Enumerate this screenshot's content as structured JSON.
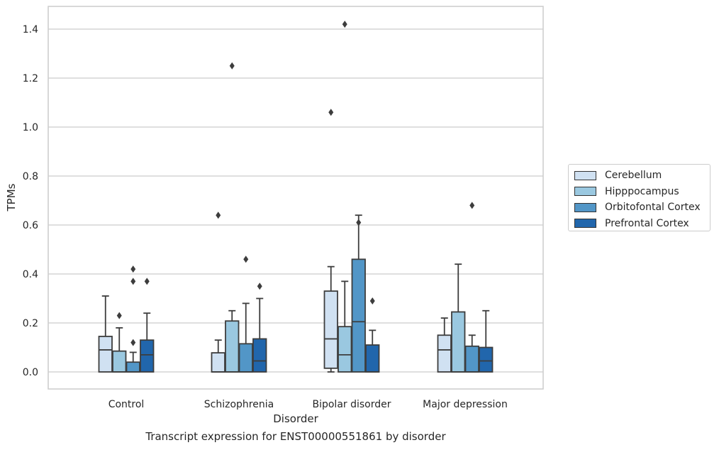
{
  "chart_data": {
    "type": "box",
    "title": "",
    "caption": "Transcript expression for ENST00000551861 by disorder",
    "xlabel": "Disorder",
    "ylabel": "TPMs",
    "ylim": [
      -0.07,
      1.49
    ],
    "yticks": [
      "0.0",
      "0.2",
      "0.4",
      "0.6",
      "0.8",
      "1.0",
      "1.2",
      "1.4"
    ],
    "ytick_values": [
      0,
      0.2,
      0.4,
      0.6,
      0.8,
      1.0,
      1.2,
      1.4
    ],
    "grid": "horizontal",
    "legend_position": "right",
    "categories": [
      "Control",
      "Schizophrenia",
      "Bipolar disorder",
      "Major depression"
    ],
    "series": [
      {
        "name": "Cerebellum",
        "color": "#d0e1f2",
        "boxes": [
          {
            "q1": 0,
            "median": 0.09,
            "q3": 0.145,
            "whisker_low": 0,
            "whisker_high": 0.31,
            "outliers": []
          },
          {
            "q1": 0,
            "median": 0.0,
            "q3": 0.078,
            "whisker_low": 0,
            "whisker_high": 0.13,
            "outliers": [
              0.64
            ]
          },
          {
            "q1": 0.015,
            "median": 0.135,
            "q3": 0.33,
            "whisker_low": 0,
            "whisker_high": 0.43,
            "outliers": [
              1.06
            ]
          },
          {
            "q1": 0,
            "median": 0.09,
            "q3": 0.15,
            "whisker_low": 0,
            "whisker_high": 0.22,
            "outliers": []
          }
        ]
      },
      {
        "name": "Hipppocampus",
        "color": "#9ac8e0",
        "boxes": [
          {
            "q1": 0,
            "median": 0.0,
            "q3": 0.085,
            "whisker_low": 0,
            "whisker_high": 0.18,
            "outliers": [
              0.23
            ]
          },
          {
            "q1": 0,
            "median": 0.0,
            "q3": 0.208,
            "whisker_low": 0,
            "whisker_high": 0.25,
            "outliers": [
              1.25
            ]
          },
          {
            "q1": 0,
            "median": 0.07,
            "q3": 0.185,
            "whisker_low": 0,
            "whisker_high": 0.37,
            "outliers": [
              1.42
            ]
          },
          {
            "q1": 0,
            "median": 0.0,
            "q3": 0.245,
            "whisker_low": 0,
            "whisker_high": 0.44,
            "outliers": []
          }
        ]
      },
      {
        "name": "Orbitofontal Cortex",
        "color": "#5296c7",
        "boxes": [
          {
            "q1": 0,
            "median": 0.0,
            "q3": 0.04,
            "whisker_low": 0,
            "whisker_high": 0.08,
            "outliers": [
              0.12,
              0.37,
              0.42
            ]
          },
          {
            "q1": 0,
            "median": 0.0,
            "q3": 0.115,
            "whisker_low": 0,
            "whisker_high": 0.28,
            "outliers": [
              0.46
            ]
          },
          {
            "q1": 0,
            "median": 0.205,
            "q3": 0.46,
            "whisker_low": 0,
            "whisker_high": 0.64,
            "outliers": [
              0.61
            ]
          },
          {
            "q1": 0,
            "median": 0.0,
            "q3": 0.105,
            "whisker_low": 0,
            "whisker_high": 0.15,
            "outliers": [
              0.68
            ]
          }
        ]
      },
      {
        "name": "Prefrontal Cortex",
        "color": "#2166ac",
        "boxes": [
          {
            "q1": 0,
            "median": 0.07,
            "q3": 0.13,
            "whisker_low": 0,
            "whisker_high": 0.24,
            "outliers": [
              0.37
            ]
          },
          {
            "q1": 0,
            "median": 0.045,
            "q3": 0.135,
            "whisker_low": 0,
            "whisker_high": 0.3,
            "outliers": [
              0.35
            ]
          },
          {
            "q1": 0,
            "median": 0.0,
            "q3": 0.11,
            "whisker_low": 0,
            "whisker_high": 0.17,
            "outliers": [
              0.29
            ]
          },
          {
            "q1": 0,
            "median": 0.045,
            "q3": 0.1,
            "whisker_low": 0,
            "whisker_high": 0.25,
            "outliers": []
          }
        ]
      }
    ]
  }
}
